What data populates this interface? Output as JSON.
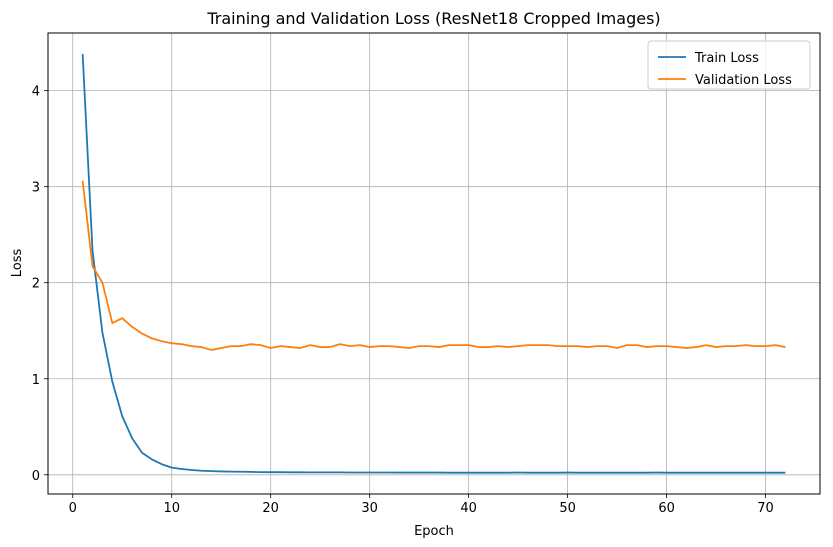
{
  "chart_data": {
    "type": "line",
    "title": "Training and Validation Loss (ResNet18 Cropped Images)",
    "xlabel": "Epoch",
    "ylabel": "Loss",
    "xlim": [
      -2.5,
      75.5
    ],
    "ylim": [
      -0.2,
      4.6
    ],
    "xticks": [
      0,
      10,
      20,
      30,
      40,
      50,
      60,
      70
    ],
    "yticks": [
      0,
      1,
      2,
      3,
      4
    ],
    "grid": true,
    "legend_position": "top-right",
    "x": [
      1,
      2,
      3,
      4,
      5,
      6,
      7,
      8,
      9,
      10,
      11,
      12,
      13,
      14,
      15,
      16,
      17,
      18,
      19,
      20,
      21,
      22,
      23,
      24,
      25,
      26,
      27,
      28,
      29,
      30,
      31,
      32,
      33,
      34,
      35,
      36,
      37,
      38,
      39,
      40,
      41,
      42,
      43,
      44,
      45,
      46,
      47,
      48,
      49,
      50,
      51,
      52,
      53,
      54,
      55,
      56,
      57,
      58,
      59,
      60,
      61,
      62,
      63,
      64,
      65,
      66,
      67,
      68,
      69,
      70,
      71,
      72
    ],
    "series": [
      {
        "name": "Train Loss",
        "color": "#1f77b4",
        "values": [
          4.38,
          2.33,
          1.48,
          0.97,
          0.61,
          0.38,
          0.23,
          0.16,
          0.11,
          0.075,
          0.06,
          0.05,
          0.042,
          0.038,
          0.035,
          0.033,
          0.032,
          0.03,
          0.028,
          0.027,
          0.027,
          0.026,
          0.026,
          0.025,
          0.025,
          0.025,
          0.025,
          0.024,
          0.024,
          0.024,
          0.024,
          0.024,
          0.023,
          0.023,
          0.023,
          0.023,
          0.023,
          0.022,
          0.022,
          0.022,
          0.022,
          0.022,
          0.022,
          0.022,
          0.024,
          0.022,
          0.022,
          0.022,
          0.022,
          0.023,
          0.022,
          0.022,
          0.022,
          0.022,
          0.022,
          0.022,
          0.022,
          0.022,
          0.023,
          0.022,
          0.022,
          0.022,
          0.022,
          0.022,
          0.022,
          0.022,
          0.022,
          0.022,
          0.022,
          0.022,
          0.022,
          0.022
        ]
      },
      {
        "name": "Validation Loss",
        "color": "#ff7f0e",
        "values": [
          3.06,
          2.17,
          2.0,
          1.58,
          1.63,
          1.54,
          1.47,
          1.42,
          1.39,
          1.37,
          1.36,
          1.34,
          1.33,
          1.3,
          1.32,
          1.34,
          1.34,
          1.36,
          1.35,
          1.32,
          1.34,
          1.33,
          1.32,
          1.35,
          1.33,
          1.33,
          1.36,
          1.34,
          1.35,
          1.33,
          1.34,
          1.34,
          1.33,
          1.32,
          1.34,
          1.34,
          1.33,
          1.35,
          1.35,
          1.35,
          1.33,
          1.33,
          1.34,
          1.33,
          1.34,
          1.35,
          1.35,
          1.35,
          1.34,
          1.34,
          1.34,
          1.33,
          1.34,
          1.34,
          1.32,
          1.35,
          1.35,
          1.33,
          1.34,
          1.34,
          1.33,
          1.32,
          1.33,
          1.35,
          1.33,
          1.34,
          1.34,
          1.35,
          1.34,
          1.34,
          1.35,
          1.33
        ]
      }
    ]
  }
}
